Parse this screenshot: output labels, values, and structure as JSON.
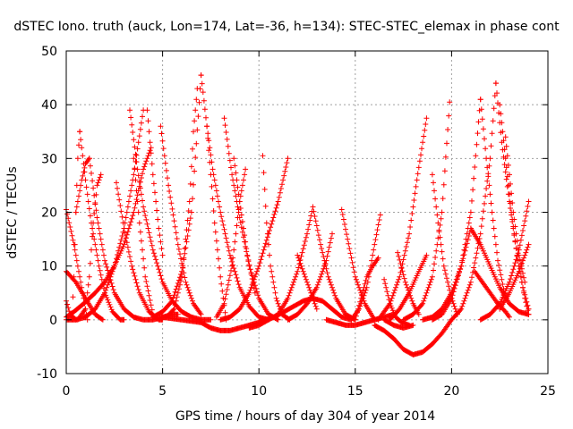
{
  "chart_data": {
    "type": "scatter",
    "title": "dSTEC Iono. truth (auck, Lon=174, Lat=-36, h=134): STEC-STEC_elemax in phase cont",
    "xlabel": "GPS time / hours of day 304 of year 2014",
    "ylabel": "dSTEC  / TECUs",
    "xlim": [
      0,
      25
    ],
    "ylim": [
      -10,
      50
    ],
    "xticks": [
      0,
      5,
      10,
      15,
      20,
      25
    ],
    "yticks": [
      -10,
      0,
      10,
      20,
      30,
      40,
      50
    ],
    "grid": true,
    "marker": "+",
    "color": "#ff0000",
    "series": [
      {
        "x": [
          0.0,
          0.4,
          0.8,
          1.1
        ],
        "y": [
          20.5,
          14.0,
          6.0,
          0.0
        ]
      },
      {
        "x": [
          0.0,
          0.5,
          1.0,
          1.5,
          1.9
        ],
        "y": [
          9.0,
          7.0,
          4.0,
          1.0,
          0.0
        ]
      },
      {
        "x": [
          0.0,
          0.2,
          0.5
        ],
        "y": [
          3.5,
          1.0,
          0.0
        ]
      },
      {
        "x": [
          0.0,
          0.5,
          1.0,
          1.5,
          2.0,
          2.5,
          3.0,
          3.5,
          4.0
        ],
        "y": [
          0.0,
          0.0,
          0.5,
          2.0,
          5.0,
          10.0,
          17.0,
          27.0,
          39.0
        ]
      },
      {
        "x": [
          0.0,
          0.4,
          0.9,
          1.5,
          2.0,
          2.5,
          3.0,
          3.5,
          4.0,
          4.4
        ],
        "y": [
          0.5,
          1.5,
          3.0,
          5.0,
          7.0,
          10.0,
          14.0,
          20.0,
          28.0,
          32.0
        ]
      },
      {
        "x": [
          0.3,
          0.4,
          0.5,
          0.6,
          0.7
        ],
        "y": [
          0.5,
          8.0,
          20.0,
          30.0,
          35.0
        ]
      },
      {
        "x": [
          0.7,
          1.0,
          1.3,
          1.7,
          2.0,
          2.4,
          2.8,
          3.0
        ],
        "y": [
          35.0,
          26.0,
          18.0,
          10.0,
          5.0,
          1.5,
          0.0,
          0.0
        ]
      },
      {
        "x": [
          0.5,
          0.8,
          1.0,
          1.2
        ],
        "y": [
          20.0,
          26.0,
          29.0,
          30.0
        ]
      },
      {
        "x": [
          1.2,
          1.6,
          2.0,
          2.5,
          3.0,
          3.5,
          4.0,
          4.5,
          5.0,
          5.5,
          5.8
        ],
        "y": [
          30.0,
          19.0,
          11.0,
          5.0,
          2.0,
          0.5,
          0.0,
          0.0,
          0.5,
          1.0,
          1.0
        ]
      },
      {
        "x": [
          0.6,
          0.8,
          1.0,
          1.2,
          1.4,
          1.6,
          1.8
        ],
        "y": [
          0.0,
          1.0,
          2.0,
          8.0,
          18.0,
          25.0,
          27.0
        ]
      },
      {
        "x": [
          2.6,
          3.0,
          3.4,
          3.8,
          4.3,
          4.8,
          5.0
        ],
        "y": [
          25.5,
          17.0,
          10.0,
          5.0,
          1.5,
          0.0,
          0.0
        ]
      },
      {
        "x": [
          3.3,
          3.7,
          4.0,
          4.5,
          5.0,
          5.5,
          6.0,
          6.5,
          7.0,
          7.5
        ],
        "y": [
          39.0,
          28.0,
          21.0,
          13.0,
          7.0,
          3.5,
          1.5,
          0.5,
          0.0,
          0.0
        ]
      },
      {
        "x": [
          3.5,
          3.8,
          4.1,
          4.5
        ],
        "y": [
          30.0,
          18.0,
          8.0,
          1.0
        ]
      },
      {
        "x": [
          4.2,
          4.5,
          4.8,
          5.0
        ],
        "y": [
          39.0,
          27.0,
          17.0,
          12.0
        ]
      },
      {
        "x": [
          4.9,
          5.3,
          5.8,
          6.2,
          6.6,
          7.0
        ],
        "y": [
          36.0,
          25.0,
          14.0,
          7.0,
          3.0,
          1.0
        ]
      },
      {
        "x": [
          5.2,
          5.6,
          6.0,
          6.4,
          6.6,
          6.8
        ],
        "y": [
          0.5,
          2.0,
          8.0,
          22.0,
          35.0,
          43.0
        ]
      },
      {
        "x": [
          4.5,
          5.0,
          5.5,
          6.0,
          6.5,
          7.0
        ],
        "y": [
          0.5,
          1.5,
          3.5,
          9.0,
          20.0,
          45.5
        ]
      },
      {
        "x": [
          7.0,
          7.3,
          7.6,
          8.0,
          8.5,
          9.0,
          9.5,
          10.0,
          10.5
        ],
        "y": [
          45.5,
          36.0,
          28.0,
          20.0,
          12.0,
          6.0,
          2.5,
          0.5,
          0.0
        ]
      },
      {
        "x": [
          7.3,
          7.5,
          7.7,
          8.0,
          8.3
        ],
        "y": [
          36.0,
          27.0,
          18.0,
          8.0,
          0.0
        ]
      },
      {
        "x": [
          5.0,
          6.0,
          7.0,
          7.5,
          8.0,
          8.5,
          9.0,
          9.5,
          10.0,
          10.2
        ],
        "y": [
          0.5,
          0.0,
          -0.5,
          -1.5,
          -2.0,
          -2.0,
          -1.5,
          -1.0,
          -0.5,
          0.0
        ]
      },
      {
        "x": [
          8.2,
          8.6,
          9.0,
          9.5,
          10.0,
          10.5,
          11.0
        ],
        "y": [
          37.5,
          27.0,
          19.0,
          10.0,
          4.0,
          1.0,
          0.0
        ]
      },
      {
        "x": [
          7.8,
          8.2,
          8.6,
          9.0,
          9.3
        ],
        "y": [
          0.5,
          3.0,
          10.0,
          22.0,
          28.0
        ]
      },
      {
        "x": [
          8.7,
          9.0,
          9.4,
          9.8
        ],
        "y": [
          30.0,
          22.0,
          12.0,
          5.0
        ]
      },
      {
        "x": [
          8.0,
          8.5,
          9.0,
          9.5,
          10.0,
          10.5,
          11.0,
          11.5
        ],
        "y": [
          0.0,
          0.5,
          2.0,
          5.0,
          10.0,
          16.0,
          22.0,
          30.0
        ]
      },
      {
        "x": [
          10.2,
          10.4,
          10.6,
          10.9,
          11.2,
          11.6
        ],
        "y": [
          30.5,
          18.0,
          10.0,
          4.0,
          1.0,
          0.0
        ]
      },
      {
        "x": [
          10.3,
          10.8,
          11.3,
          11.8,
          12.3,
          12.8,
          13.3,
          13.8,
          14.3,
          14.8
        ],
        "y": [
          0.0,
          0.5,
          1.5,
          2.5,
          3.5,
          4.0,
          3.5,
          2.0,
          0.5,
          0.0
        ]
      },
      {
        "x": [
          9.5,
          10.0,
          10.5,
          11.0,
          11.5,
          12.0,
          12.5,
          12.8
        ],
        "y": [
          -1.5,
          -1.0,
          0.0,
          1.0,
          4.0,
          9.0,
          16.0,
          21.0
        ]
      },
      {
        "x": [
          12.8,
          13.2,
          13.6,
          14.0,
          14.5,
          15.0
        ],
        "y": [
          21.0,
          14.0,
          8.0,
          4.0,
          1.0,
          0.0
        ]
      },
      {
        "x": [
          11.5,
          12.0,
          12.5,
          13.0,
          13.5,
          13.8
        ],
        "y": [
          0.0,
          1.0,
          3.0,
          6.0,
          11.0,
          16.0
        ]
      },
      {
        "x": [
          12.0,
          12.5,
          13.0
        ],
        "y": [
          12.0,
          7.0,
          2.0
        ]
      },
      {
        "x": [
          14.3,
          14.6,
          15.0,
          15.5,
          16.0
        ],
        "y": [
          20.5,
          15.0,
          8.0,
          3.0,
          0.0
        ]
      },
      {
        "x": [
          14.8,
          15.2,
          15.6,
          16.0,
          16.3
        ],
        "y": [
          0.0,
          2.0,
          6.0,
          14.0,
          19.5
        ]
      },
      {
        "x": [
          13.5,
          14.0,
          14.5,
          15.0,
          15.5,
          16.0,
          16.5,
          17.0
        ],
        "y": [
          0.0,
          -0.5,
          -1.0,
          -1.0,
          -0.5,
          0.0,
          0.5,
          1.0
        ]
      },
      {
        "x": [
          15.0,
          15.3,
          15.6,
          15.9,
          16.2
        ],
        "y": [
          0.0,
          4.0,
          8.0,
          10.0,
          11.5
        ]
      },
      {
        "x": [
          16.0,
          16.5,
          17.0,
          17.5,
          18.0,
          18.5,
          19.0,
          19.5,
          20.0
        ],
        "y": [
          -1.0,
          -2.0,
          -3.5,
          -5.5,
          -6.5,
          -6.0,
          -4.5,
          -2.5,
          0.0
        ]
      },
      {
        "x": [
          16.5,
          17.0,
          17.5,
          18.0
        ],
        "y": [
          0.0,
          -1.0,
          -1.5,
          -1.0
        ]
      },
      {
        "x": [
          16.5,
          16.8,
          17.1,
          17.4,
          17.8
        ],
        "y": [
          7.5,
          3.0,
          0.5,
          -0.5,
          -1.0
        ]
      },
      {
        "x": [
          17.2,
          17.6,
          18.0,
          18.3
        ],
        "y": [
          12.5,
          7.0,
          3.0,
          1.0
        ]
      },
      {
        "x": [
          16.8,
          17.3,
          17.8,
          18.3,
          18.7
        ],
        "y": [
          0.0,
          2.0,
          5.0,
          9.0,
          12.0
        ]
      },
      {
        "x": [
          16.2,
          16.8,
          17.3,
          17.8,
          18.2,
          18.5,
          18.7
        ],
        "y": [
          0.0,
          3.0,
          8.0,
          16.0,
          26.0,
          33.0,
          37.5
        ]
      },
      {
        "x": [
          17.5,
          18.0,
          18.5,
          19.0,
          19.5,
          19.9
        ],
        "y": [
          0.0,
          1.0,
          3.0,
          8.0,
          20.0,
          40.5
        ]
      },
      {
        "x": [
          18.5,
          19.0,
          19.5,
          20.0,
          20.5,
          21.0
        ],
        "y": [
          0.0,
          0.5,
          2.0,
          5.0,
          10.0,
          17.0
        ]
      },
      {
        "x": [
          19.0,
          19.3,
          19.6,
          20.0,
          20.3
        ],
        "y": [
          27.0,
          18.0,
          10.0,
          4.0,
          1.0
        ]
      },
      {
        "x": [
          19.0,
          19.5,
          20.0,
          20.5,
          21.0,
          21.5
        ],
        "y": [
          0.0,
          1.0,
          4.0,
          10.0,
          20.0,
          41.0
        ]
      },
      {
        "x": [
          20.0,
          20.5,
          21.0,
          21.5,
          22.0,
          22.3
        ],
        "y": [
          0.0,
          2.0,
          7.0,
          16.0,
          30.0,
          44.0
        ]
      },
      {
        "x": [
          22.3,
          22.6,
          23.0,
          23.4,
          23.8,
          24.0
        ],
        "y": [
          44.0,
          33.0,
          22.0,
          12.0,
          4.0,
          1.0
        ]
      },
      {
        "x": [
          21.5,
          21.8,
          22.1,
          22.4,
          22.8
        ],
        "y": [
          41.0,
          30.0,
          20.0,
          11.0,
          4.0
        ]
      },
      {
        "x": [
          22.5,
          22.8,
          23.1,
          23.4,
          23.7,
          24.0
        ],
        "y": [
          40.0,
          30.0,
          20.0,
          12.0,
          6.0,
          2.0
        ]
      },
      {
        "x": [
          22.8,
          23.0,
          23.2,
          23.5,
          23.8
        ],
        "y": [
          34.0,
          27.0,
          20.0,
          12.0,
          7.0
        ]
      },
      {
        "x": [
          21.5,
          22.0,
          22.5,
          23.0,
          23.5,
          24.0
        ],
        "y": [
          0.0,
          1.0,
          3.0,
          7.0,
          13.0,
          22.0
        ]
      },
      {
        "x": [
          21.2,
          21.6,
          22.0,
          22.4,
          22.8,
          23.0
        ],
        "y": [
          9.0,
          7.0,
          5.0,
          3.0,
          1.5,
          0.5
        ]
      },
      {
        "x": [
          21.0,
          21.5,
          22.0,
          22.5,
          23.0,
          23.5,
          24.0
        ],
        "y": [
          17.0,
          14.0,
          10.0,
          6.0,
          3.0,
          1.5,
          1.0
        ]
      },
      {
        "x": [
          22.5,
          23.0,
          23.5,
          24.0
        ],
        "y": [
          2.0,
          5.0,
          9.0,
          14.0
        ]
      }
    ]
  }
}
